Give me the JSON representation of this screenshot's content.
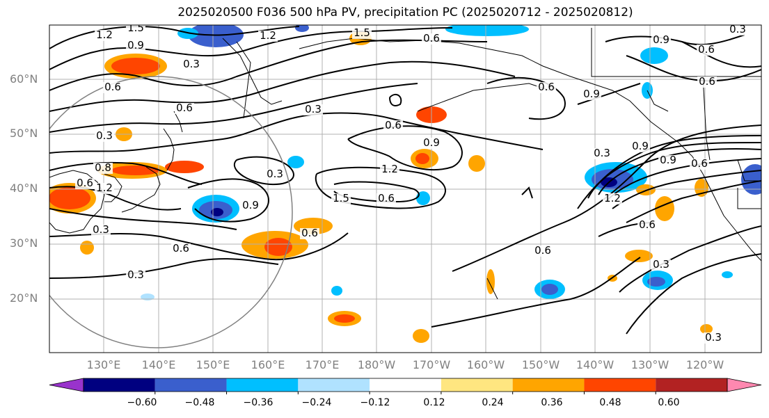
{
  "title": "2025020500 F036 500 hPa PV, precipitation PC (2025020712 - 2025020812)",
  "lat_labels": [
    "60°N",
    "50°N",
    "40°N",
    "30°N",
    "20°N"
  ],
  "lon_labels": [
    "130°E",
    "140°E",
    "150°E",
    "160°E",
    "170°E",
    "180°W",
    "170°W",
    "160°W",
    "150°W",
    "140°W",
    "130°W",
    "120°W"
  ],
  "colorbar": {
    "tick_labels": [
      "−0.60",
      "−0.48",
      "−0.36",
      "−0.24",
      "−0.12",
      "0.12",
      "0.24",
      "0.36",
      "0.48",
      "0.60"
    ],
    "colors": [
      "#9933cc",
      "#000080",
      "#3a5fcd",
      "#00bfff",
      "#b0e2ff",
      "#ffffff",
      "#ffe680",
      "#ffa500",
      "#ff4500",
      "#b22222",
      "#ff88b0"
    ]
  },
  "contour_labels": [
    "1.2",
    "1.5",
    "0.9",
    "0.3",
    "0.6",
    "1.2",
    "1.5",
    "0.6",
    "0.9",
    "0.3",
    "0.6",
    "0.6",
    "0.9",
    "0.6",
    "0.3",
    "0.3",
    "0.9",
    "0.6",
    "1.2",
    "0.6",
    "0.6",
    "1.5",
    "0.3",
    "0.9",
    "0.6",
    "0.3",
    "0.3",
    "0.9",
    "0.6",
    "0.9",
    "1.2",
    "0.6",
    "0.3",
    "0.3",
    "0.6",
    "0.6",
    "0.3",
    "1.2",
    "0.8",
    "0.6"
  ]
}
